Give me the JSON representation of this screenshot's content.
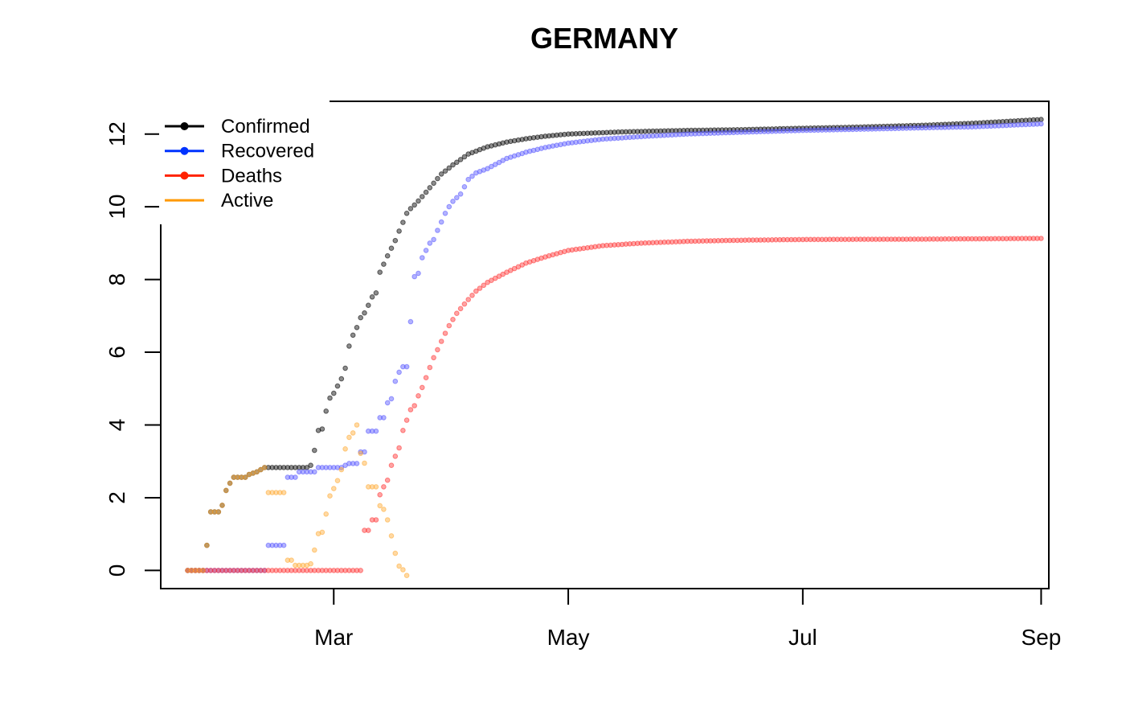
{
  "chart_data": {
    "type": "scatter",
    "title": "GERMANY",
    "xlabel": "",
    "ylabel": "",
    "x_axis": {
      "type": "date",
      "ticks": [
        "2020-03-01",
        "2020-05-01",
        "2020-07-01",
        "2020-09-01"
      ],
      "tick_labels": [
        "Mar",
        "May",
        "Jul",
        "Sep"
      ],
      "range": [
        "2020-01-16",
        "2020-09-03"
      ]
    },
    "y_axis": {
      "ticks": [
        0,
        2,
        4,
        6,
        8,
        10,
        12
      ],
      "tick_labels": [
        "0",
        "2",
        "4",
        "6",
        "8",
        "10",
        "12"
      ],
      "range": [
        -0.5,
        12.9
      ]
    },
    "grid": false,
    "legend": {
      "placement": "top-left"
    },
    "series": [
      {
        "name": "Confirmed",
        "color": "#000000",
        "legend_color": "#000000",
        "marker": "point",
        "points": [
          [
            "2020-01-23",
            0
          ],
          [
            "2020-01-27",
            0
          ],
          [
            "2020-01-28",
            0.69
          ],
          [
            "2020-01-29",
            1.61
          ],
          [
            "2020-01-31",
            1.61
          ],
          [
            "2020-02-01",
            1.79
          ],
          [
            "2020-02-02",
            2.2
          ],
          [
            "2020-02-03",
            2.4
          ],
          [
            "2020-02-04",
            2.56
          ],
          [
            "2020-02-07",
            2.56
          ],
          [
            "2020-02-08",
            2.64
          ],
          [
            "2020-02-10",
            2.71
          ],
          [
            "2020-02-12",
            2.83
          ],
          [
            "2020-02-23",
            2.83
          ],
          [
            "2020-02-24",
            2.89
          ],
          [
            "2020-02-25",
            3.3
          ],
          [
            "2020-02-26",
            3.85
          ],
          [
            "2020-02-27",
            3.89
          ],
          [
            "2020-02-28",
            4.38
          ],
          [
            "2020-02-29",
            4.74
          ],
          [
            "2020-03-01",
            4.87
          ],
          [
            "2020-03-02",
            5.07
          ],
          [
            "2020-03-03",
            5.27
          ],
          [
            "2020-03-04",
            5.56
          ],
          [
            "2020-03-05",
            6.17
          ],
          [
            "2020-03-06",
            6.47
          ],
          [
            "2020-03-07",
            6.68
          ],
          [
            "2020-03-08",
            6.95
          ],
          [
            "2020-03-09",
            7.08
          ],
          [
            "2020-03-10",
            7.29
          ],
          [
            "2020-03-11",
            7.52
          ],
          [
            "2020-03-12",
            7.63
          ],
          [
            "2020-03-13",
            8.2
          ],
          [
            "2020-03-14",
            8.42
          ],
          [
            "2020-03-15",
            8.65
          ],
          [
            "2020-03-16",
            8.86
          ],
          [
            "2020-03-17",
            9.07
          ],
          [
            "2020-03-18",
            9.33
          ],
          [
            "2020-03-19",
            9.57
          ],
          [
            "2020-03-20",
            9.82
          ],
          [
            "2020-03-21",
            9.95
          ],
          [
            "2020-03-22",
            10.05
          ],
          [
            "2020-03-23",
            10.16
          ],
          [
            "2020-03-25",
            10.4
          ],
          [
            "2020-03-27",
            10.65
          ],
          [
            "2020-03-29",
            10.9
          ],
          [
            "2020-04-01",
            11.15
          ],
          [
            "2020-04-05",
            11.45
          ],
          [
            "2020-04-10",
            11.65
          ],
          [
            "2020-04-15",
            11.78
          ],
          [
            "2020-04-20",
            11.87
          ],
          [
            "2020-04-25",
            11.94
          ],
          [
            "2020-05-01",
            12.0
          ],
          [
            "2020-05-15",
            12.06
          ],
          [
            "2020-06-01",
            12.1
          ],
          [
            "2020-06-15",
            12.12
          ],
          [
            "2020-07-01",
            12.16
          ],
          [
            "2020-07-15",
            12.19
          ],
          [
            "2020-08-01",
            12.24
          ],
          [
            "2020-08-15",
            12.3
          ],
          [
            "2020-09-01",
            12.4
          ]
        ]
      },
      {
        "name": "Recovered",
        "color": "#5555ff",
        "legend_color": "#0033ff",
        "marker": "point",
        "points": [
          [
            "2020-01-23",
            0
          ],
          [
            "2020-02-12",
            0
          ],
          [
            "2020-02-13",
            0.69
          ],
          [
            "2020-02-17",
            0.69
          ],
          [
            "2020-02-18",
            2.56
          ],
          [
            "2020-02-20",
            2.56
          ],
          [
            "2020-02-21",
            2.71
          ],
          [
            "2020-02-25",
            2.71
          ],
          [
            "2020-02-26",
            2.83
          ],
          [
            "2020-03-03",
            2.83
          ],
          [
            "2020-03-04",
            2.89
          ],
          [
            "2020-03-05",
            2.94
          ],
          [
            "2020-03-07",
            2.94
          ],
          [
            "2020-03-08",
            3.26
          ],
          [
            "2020-03-09",
            3.26
          ],
          [
            "2020-03-10",
            3.83
          ],
          [
            "2020-03-11",
            3.83
          ],
          [
            "2020-03-12",
            3.83
          ],
          [
            "2020-03-13",
            4.2
          ],
          [
            "2020-03-14",
            4.2
          ],
          [
            "2020-03-15",
            4.61
          ],
          [
            "2020-03-16",
            4.72
          ],
          [
            "2020-03-17",
            5.2
          ],
          [
            "2020-03-18",
            5.45
          ],
          [
            "2020-03-19",
            5.6
          ],
          [
            "2020-03-20",
            5.6
          ],
          [
            "2020-03-22",
            8.08
          ],
          [
            "2020-03-23",
            8.17
          ],
          [
            "2020-03-24",
            8.6
          ],
          [
            "2020-03-25",
            8.8
          ],
          [
            "2020-03-26",
            9.0
          ],
          [
            "2020-03-27",
            9.1
          ],
          [
            "2020-03-28",
            9.35
          ],
          [
            "2020-03-29",
            9.58
          ],
          [
            "2020-03-30",
            9.82
          ],
          [
            "2020-03-31",
            10.0
          ],
          [
            "2020-04-01",
            10.15
          ],
          [
            "2020-04-03",
            10.35
          ],
          [
            "2020-04-05",
            10.75
          ],
          [
            "2020-04-07",
            10.93
          ],
          [
            "2020-04-10",
            11.05
          ],
          [
            "2020-04-15",
            11.33
          ],
          [
            "2020-04-20",
            11.5
          ],
          [
            "2020-04-25",
            11.63
          ],
          [
            "2020-05-01",
            11.75
          ],
          [
            "2020-05-10",
            11.86
          ],
          [
            "2020-05-20",
            11.93
          ],
          [
            "2020-06-01",
            12.0
          ],
          [
            "2020-06-15",
            12.05
          ],
          [
            "2020-07-01",
            12.1
          ],
          [
            "2020-07-15",
            12.13
          ],
          [
            "2020-08-01",
            12.17
          ],
          [
            "2020-08-15",
            12.2
          ],
          [
            "2020-09-01",
            12.28
          ]
        ]
      },
      {
        "name": "Deaths",
        "color": "#ff3333",
        "legend_color": "#ff2200",
        "marker": "point",
        "points": [
          [
            "2020-01-23",
            0
          ],
          [
            "2020-03-08",
            0
          ],
          [
            "2020-03-09",
            1.1
          ],
          [
            "2020-03-10",
            1.1
          ],
          [
            "2020-03-11",
            1.39
          ],
          [
            "2020-03-12",
            1.39
          ],
          [
            "2020-03-13",
            2.08
          ],
          [
            "2020-03-14",
            2.3
          ],
          [
            "2020-03-15",
            2.48
          ],
          [
            "2020-03-16",
            2.89
          ],
          [
            "2020-03-17",
            3.14
          ],
          [
            "2020-03-18",
            3.37
          ],
          [
            "2020-03-19",
            3.85
          ],
          [
            "2020-03-20",
            4.13
          ],
          [
            "2020-03-21",
            4.42
          ],
          [
            "2020-03-22",
            4.53
          ],
          [
            "2020-03-23",
            4.8
          ],
          [
            "2020-03-24",
            5.03
          ],
          [
            "2020-03-25",
            5.3
          ],
          [
            "2020-03-26",
            5.58
          ],
          [
            "2020-03-27",
            5.85
          ],
          [
            "2020-03-28",
            6.07
          ],
          [
            "2020-03-29",
            6.3
          ],
          [
            "2020-03-30",
            6.52
          ],
          [
            "2020-03-31",
            6.73
          ],
          [
            "2020-04-01",
            6.9
          ],
          [
            "2020-04-02",
            7.07
          ],
          [
            "2020-04-03",
            7.2
          ],
          [
            "2020-04-05",
            7.45
          ],
          [
            "2020-04-07",
            7.68
          ],
          [
            "2020-04-10",
            7.92
          ],
          [
            "2020-04-15",
            8.2
          ],
          [
            "2020-04-20",
            8.45
          ],
          [
            "2020-04-25",
            8.62
          ],
          [
            "2020-05-01",
            8.8
          ],
          [
            "2020-05-10",
            8.93
          ],
          [
            "2020-05-20",
            9.0
          ],
          [
            "2020-06-01",
            9.05
          ],
          [
            "2020-06-15",
            9.08
          ],
          [
            "2020-07-01",
            9.1
          ],
          [
            "2020-08-01",
            9.11
          ],
          [
            "2020-09-01",
            9.13
          ]
        ]
      },
      {
        "name": "Active",
        "color": "#ffaa33",
        "legend_color": "#ff9900",
        "marker": "line",
        "points": [
          [
            "2020-01-23",
            0
          ],
          [
            "2020-01-27",
            0
          ],
          [
            "2020-01-28",
            0.69
          ],
          [
            "2020-01-29",
            1.61
          ],
          [
            "2020-01-31",
            1.61
          ],
          [
            "2020-02-01",
            1.79
          ],
          [
            "2020-02-02",
            2.2
          ],
          [
            "2020-02-03",
            2.4
          ],
          [
            "2020-02-04",
            2.56
          ],
          [
            "2020-02-07",
            2.56
          ],
          [
            "2020-02-08",
            2.64
          ],
          [
            "2020-02-10",
            2.71
          ],
          [
            "2020-02-12",
            2.83
          ],
          [
            "2020-02-13",
            2.14
          ],
          [
            "2020-02-17",
            2.14
          ],
          [
            "2020-02-18",
            0.28
          ],
          [
            "2020-02-19",
            0.28
          ],
          [
            "2020-02-20",
            0.14
          ],
          [
            "2020-02-23",
            0.14
          ],
          [
            "2020-02-24",
            0.18
          ],
          [
            "2020-02-25",
            0.56
          ],
          [
            "2020-02-26",
            1.01
          ],
          [
            "2020-02-27",
            1.05
          ],
          [
            "2020-02-28",
            1.55
          ],
          [
            "2020-02-29",
            2.05
          ],
          [
            "2020-03-01",
            2.25
          ],
          [
            "2020-03-02",
            2.47
          ],
          [
            "2020-03-03",
            2.77
          ],
          [
            "2020-03-04",
            3.34
          ],
          [
            "2020-03-05",
            3.66
          ],
          [
            "2020-03-06",
            3.78
          ],
          [
            "2020-03-07",
            4.0
          ],
          [
            "2020-03-08",
            3.22
          ],
          [
            "2020-03-09",
            2.95
          ],
          [
            "2020-03-10",
            2.3
          ],
          [
            "2020-03-11",
            2.3
          ],
          [
            "2020-03-12",
            2.3
          ],
          [
            "2020-03-13",
            1.78
          ],
          [
            "2020-03-14",
            1.68
          ],
          [
            "2020-03-15",
            1.39
          ],
          [
            "2020-03-16",
            0.95
          ],
          [
            "2020-03-17",
            0.47
          ],
          [
            "2020-03-18",
            0.12
          ],
          [
            "2020-03-19",
            0.02
          ],
          [
            "2020-03-20",
            -0.14
          ]
        ]
      }
    ]
  }
}
